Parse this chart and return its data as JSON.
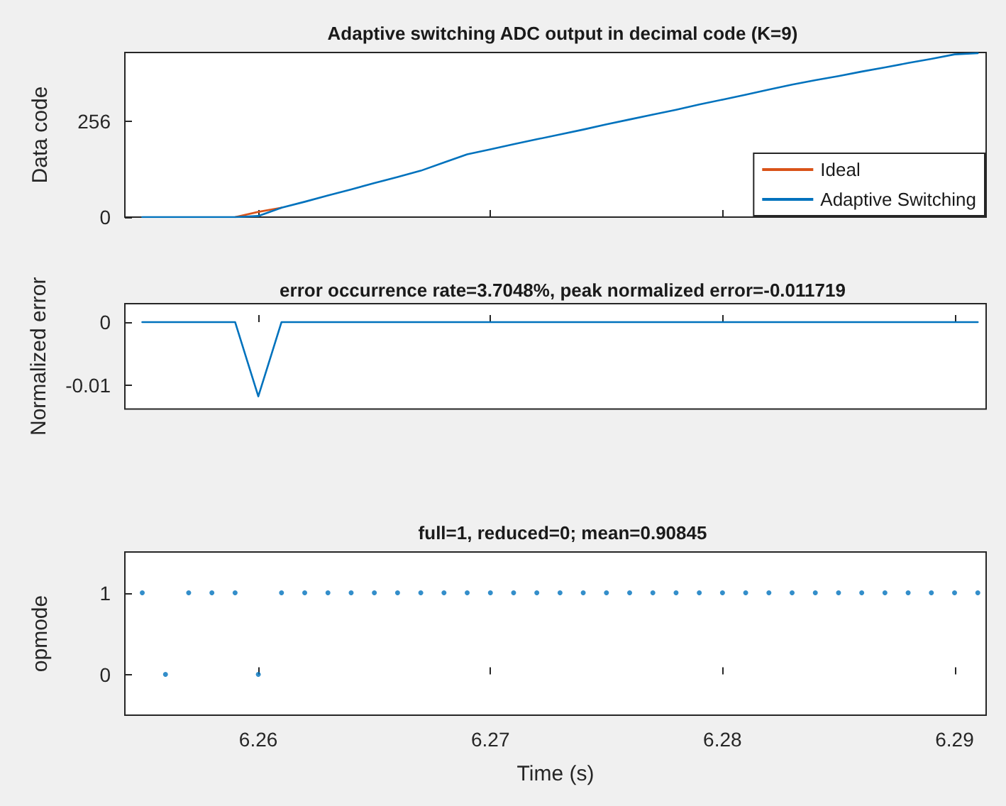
{
  "chart_data": [
    {
      "type": "line",
      "title": "Adaptive switching ADC output in decimal code (K=9)",
      "ylabel": "Data code",
      "x": [
        6.255,
        6.256,
        6.257,
        6.258,
        6.259,
        6.26,
        6.261,
        6.262,
        6.263,
        6.264,
        6.265,
        6.266,
        6.267,
        6.268,
        6.269,
        6.27,
        6.271,
        6.272,
        6.273,
        6.274,
        6.275,
        6.276,
        6.277,
        6.278,
        6.279,
        6.28,
        6.281,
        6.282,
        6.283,
        6.284,
        6.285,
        6.286,
        6.287,
        6.288,
        6.289,
        6.29,
        6.291
      ],
      "series": [
        {
          "name": "Ideal",
          "color": "#d95319",
          "values": [
            null,
            null,
            null,
            null,
            0,
            14,
            25,
            null,
            null,
            null,
            null,
            null,
            null,
            null,
            null,
            null,
            null,
            null,
            null,
            null,
            null,
            null,
            null,
            null,
            null,
            null,
            null,
            null,
            null,
            null,
            null,
            null,
            null,
            null,
            null,
            null,
            null
          ]
        },
        {
          "name": "Adaptive Switching",
          "color": "#0072bd",
          "values": [
            0,
            0,
            0,
            0,
            0,
            3,
            25,
            41,
            58,
            74,
            91,
            107,
            124,
            146,
            168,
            181,
            195,
            208,
            221,
            234,
            248,
            261,
            274,
            287,
            301,
            314,
            327,
            341,
            354,
            366,
            377,
            389,
            400,
            412,
            423,
            435,
            438
          ]
        }
      ],
      "xlim": [
        6.25425,
        6.29136
      ],
      "xticks": [
        6.26,
        6.27,
        6.28,
        6.29
      ],
      "ylim": [
        0,
        440
      ],
      "yticks": [
        0,
        256
      ],
      "tick_labels": "y",
      "legend": "bottom right",
      "line_style": "solid",
      "marker": "none"
    },
    {
      "type": "line",
      "title": "error occurrence rate=3.7048%, peak normalized error=-0.011719",
      "ylabel": "Normalized error",
      "x": [
        6.255,
        6.256,
        6.257,
        6.258,
        6.259,
        6.26,
        6.261,
        6.262,
        6.263,
        6.264,
        6.265,
        6.266,
        6.267,
        6.268,
        6.269,
        6.27,
        6.271,
        6.272,
        6.273,
        6.274,
        6.275,
        6.276,
        6.277,
        6.278,
        6.279,
        6.28,
        6.281,
        6.282,
        6.283,
        6.284,
        6.285,
        6.286,
        6.287,
        6.288,
        6.289,
        6.29,
        6.291
      ],
      "series": [
        {
          "color": "#0072bd",
          "values": [
            0,
            0,
            0,
            0,
            0,
            -0.0117,
            0,
            0,
            0,
            0,
            0,
            0,
            0,
            0,
            0,
            0,
            0,
            0,
            0,
            0,
            0,
            0,
            0,
            0,
            0,
            0,
            0,
            0,
            0,
            0,
            0,
            0,
            0,
            0,
            0,
            0,
            0
          ]
        }
      ],
      "xlim": [
        6.25425,
        6.29136
      ],
      "xticks": [
        6.26,
        6.27,
        6.28,
        6.29
      ],
      "ylim": [
        -0.0137,
        0.0029
      ],
      "yticks": [
        -0.01,
        0
      ],
      "tick_labels": "y",
      "line_style": "solid",
      "marker": "none"
    },
    {
      "type": "scatter",
      "title": "full=1, reduced=0; mean=0.90845",
      "ylabel": "opmode",
      "xlabel": "Time (s)",
      "x": [
        6.255,
        6.256,
        6.257,
        6.258,
        6.259,
        6.26,
        6.261,
        6.262,
        6.263,
        6.264,
        6.265,
        6.266,
        6.267,
        6.268,
        6.269,
        6.27,
        6.271,
        6.272,
        6.273,
        6.274,
        6.275,
        6.276,
        6.277,
        6.278,
        6.279,
        6.28,
        6.281,
        6.282,
        6.283,
        6.284,
        6.285,
        6.286,
        6.287,
        6.288,
        6.289,
        6.29,
        6.291
      ],
      "series": [
        {
          "color": "#0072bd",
          "values": [
            1,
            0,
            1,
            1,
            1,
            0,
            1,
            1,
            1,
            1,
            1,
            1,
            1,
            1,
            1,
            1,
            1,
            1,
            1,
            1,
            1,
            1,
            1,
            1,
            1,
            1,
            1,
            1,
            1,
            1,
            1,
            1,
            1,
            1,
            1,
            1,
            1
          ]
        }
      ],
      "xlim": [
        6.25425,
        6.29136
      ],
      "xticks": [
        6.26,
        6.27,
        6.28,
        6.29
      ],
      "ylim": [
        -0.5,
        1.5
      ],
      "yticks": [
        0,
        1
      ],
      "marker": "circle"
    }
  ]
}
